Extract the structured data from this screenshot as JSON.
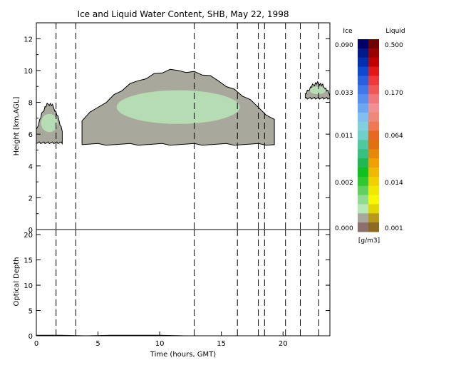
{
  "chart_data": [
    {
      "type": "heatmap",
      "title": "Ice and Liquid Water Content, SHB, May 22, 1998",
      "ylabel": "Height [km,AGL]",
      "xlim": [
        0,
        23.8
      ],
      "ylim": [
        0,
        13
      ],
      "yticks": [
        "0",
        "2",
        "4",
        "6",
        "8",
        "10",
        "12"
      ],
      "dashed_times": [
        1.6,
        3.2,
        12.8,
        16.3,
        18.0,
        18.5,
        20.2,
        21.4,
        22.9
      ],
      "cloud_layers": [
        {
          "name": "layer-1",
          "t_start": 0.0,
          "t_end": 2.1,
          "base_km": 5.4,
          "top_km": 8.0
        },
        {
          "name": "layer-2",
          "t_start": 3.7,
          "t_end": 19.3,
          "base_km": 5.3,
          "top_km": 10.1
        },
        {
          "name": "layer-3",
          "t_start": 21.8,
          "t_end": 23.8,
          "base_km": 8.2,
          "top_km": 9.3
        }
      ]
    },
    {
      "type": "line",
      "xlabel": "Time (hours, GMT)",
      "ylabel": "Optical Depth",
      "xlim": [
        0,
        23.8
      ],
      "ylim": [
        0,
        21
      ],
      "xticks": [
        "0",
        "5",
        "10",
        "15",
        "20"
      ],
      "yticks": [
        "0",
        "5",
        "10",
        "15",
        "20"
      ],
      "values_note": "",
      "x": [
        0,
        2,
        4,
        6,
        8,
        10,
        12,
        14,
        16,
        18,
        20,
        22,
        23.8
      ],
      "y": [
        0.1,
        0.1,
        0,
        0.1,
        0.1,
        0.1,
        0,
        0,
        0,
        0,
        0,
        0,
        0
      ]
    }
  ],
  "colorbar": {
    "ice_header": "Ice",
    "liquid_header": "Liquid",
    "units": "[g/m3]",
    "ice_labels": [
      "0.090",
      "0.033",
      "0.011",
      "0.002",
      "0.000"
    ],
    "liquid_labels": [
      "0.500",
      "0.170",
      "0.064",
      "0.014",
      "0.001"
    ],
    "ice_colors": [
      "#000066",
      "#001a8c",
      "#0030b0",
      "#1048d0",
      "#2a60e0",
      "#4078ea",
      "#5890f0",
      "#6aa8f4",
      "#80c0f0",
      "#80d0e0",
      "#6ed0c8",
      "#50c8a0",
      "#38c080",
      "#20b850",
      "#10c020",
      "#30c830",
      "#60d060",
      "#90dc90",
      "#b8e8b8",
      "#a8a89c",
      "#8c7070"
    ],
    "liquid_colors": [
      "#700000",
      "#9a0000",
      "#c00000",
      "#e01818",
      "#f03838",
      "#f05858",
      "#f07878",
      "#f09090",
      "#f08878",
      "#f07850",
      "#e86820",
      "#e07010",
      "#e88808",
      "#f0a000",
      "#f0b800",
      "#f0d000",
      "#f0e800",
      "#f8f800",
      "#e0d800",
      "#b89a18",
      "#8c6a20"
    ]
  }
}
